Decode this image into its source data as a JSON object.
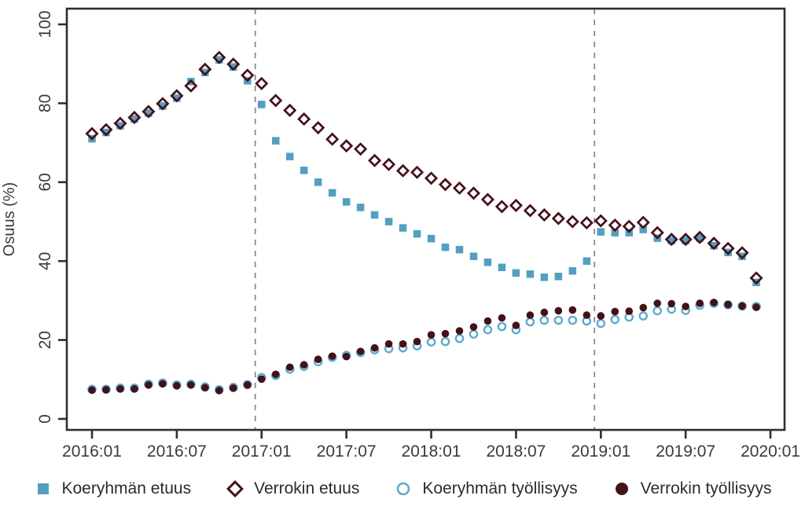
{
  "figure": {
    "background": "#ffffff",
    "axis_color": "#2f2f2f",
    "text_color": "#3a3a3a",
    "dashed_line_color": "#8a8a8a"
  },
  "chart_data": {
    "type": "scatter",
    "title": "",
    "xlabel": "",
    "ylabel": "Osuus (%)",
    "ylim": [
      0,
      100
    ],
    "y_ticks": [
      0,
      20,
      40,
      60,
      80,
      100
    ],
    "x_tick_labels": [
      "2016:01",
      "2016:07",
      "2017:01",
      "2017:07",
      "2018:01",
      "2018:07",
      "2019:01",
      "2019:07",
      "2020:01"
    ],
    "x_months_start": "2016:01",
    "x_months_end": "2019:12",
    "n_points": 48,
    "grid": false,
    "legend_position": "bottom",
    "dashed_vlines_month_index": [
      11.55,
      35.55
    ],
    "series": [
      {
        "name": "Koeryhmän etuus",
        "marker": "filled-square",
        "color": "#539fc0",
        "values": [
          71,
          72.6,
          74.3,
          76,
          77.5,
          79.3,
          81.3,
          85.5,
          87.8,
          91,
          89.2,
          85.7,
          79.7,
          70.5,
          66.5,
          63,
          60,
          57.3,
          55,
          53.6,
          51.7,
          50,
          48.4,
          46.9,
          45.7,
          43.5,
          42.9,
          41.2,
          39.7,
          38.4,
          37,
          36.7,
          35.9,
          36.1,
          37.5,
          40,
          47.4,
          47.2,
          47.2,
          48,
          45.8,
          45.2,
          45.2,
          45.8,
          43.9,
          42.2,
          41.2,
          34.6
        ]
      },
      {
        "name": "Verrokin etuus",
        "marker": "open-diamond",
        "color": "#451119",
        "values": [
          72.3,
          73.3,
          74.9,
          76.4,
          77.9,
          79.9,
          81.9,
          84.4,
          88.6,
          91.6,
          89.9,
          87.1,
          85,
          80.7,
          78.2,
          76,
          73.8,
          70.9,
          69.2,
          68.4,
          65.5,
          64.5,
          62.9,
          62.5,
          61,
          59.4,
          58.5,
          57.2,
          55.6,
          53.8,
          54.1,
          52.8,
          51.7,
          50.8,
          50,
          49.7,
          50.2,
          49.1,
          48.8,
          49.8,
          47.2,
          45.5,
          45.5,
          46,
          44.5,
          43.2,
          42.1,
          35.7
        ]
      },
      {
        "name": "Koeryhmän työllisyys",
        "marker": "open-circle",
        "color": "#60aacf",
        "values": [
          7.5,
          7.5,
          7.8,
          7.8,
          8.8,
          9.1,
          8.6,
          8.8,
          8.1,
          7.4,
          8.0,
          8.7,
          10.5,
          11.0,
          12.6,
          13.3,
          14.5,
          15.6,
          16.1,
          16.8,
          17.5,
          17.8,
          18.0,
          18.5,
          19.5,
          19.6,
          20.4,
          21.5,
          22.6,
          23.4,
          22.6,
          24.6,
          25.0,
          25.0,
          25.0,
          24.8,
          24.2,
          25.2,
          25.8,
          26.1,
          27.4,
          27.8,
          27.5,
          28.8,
          29.3,
          28.9,
          28.6,
          28.5
        ]
      },
      {
        "name": "Verrokin työllisyys",
        "marker": "filled-circle",
        "color": "#451119",
        "values": [
          7.3,
          7.4,
          7.6,
          7.6,
          8.6,
          8.9,
          8.4,
          8.6,
          7.9,
          7.2,
          7.8,
          8.6,
          10.1,
          11.3,
          13.1,
          13.7,
          15.1,
          15.9,
          15.8,
          17.1,
          18.0,
          19.0,
          19.0,
          19.6,
          21.3,
          21.6,
          22.3,
          23.3,
          24.8,
          25.6,
          23.7,
          26.3,
          27.0,
          27.4,
          27.6,
          26.3,
          26.1,
          27.2,
          27.3,
          28.2,
          29.3,
          29.2,
          28.5,
          29.3,
          29.5,
          29.0,
          28.6,
          28.3
        ]
      }
    ]
  }
}
